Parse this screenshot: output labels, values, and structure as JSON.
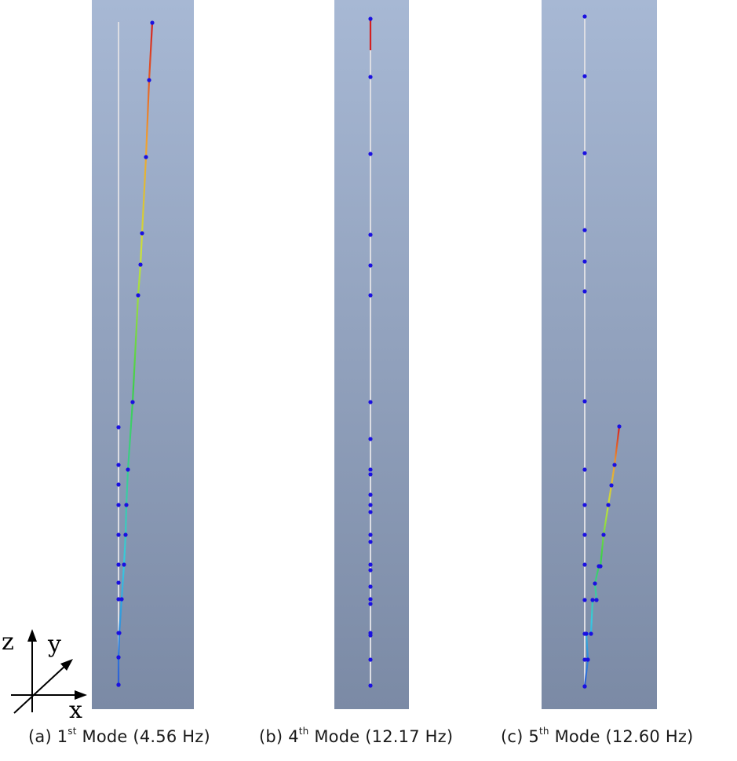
{
  "axes": {
    "z": "z",
    "y": "y",
    "x": "x"
  },
  "panels": [
    {
      "id": "a",
      "caption": {
        "prefix": "(a) 1",
        "sup": "st",
        "suffix": " Mode (4.56 Hz)"
      },
      "colors": {
        "top": "#a7b8d4",
        "bottom": "#7b8aa5"
      },
      "deformed_nodes": [
        [
          194,
          29
        ],
        [
          190,
          102
        ],
        [
          186,
          200
        ],
        [
          181,
          297
        ],
        [
          179,
          337
        ],
        [
          176,
          376
        ],
        [
          169,
          512
        ],
        [
          163,
          598
        ],
        [
          161,
          643
        ],
        [
          160,
          681
        ],
        [
          158,
          719
        ],
        [
          155,
          763
        ],
        [
          152,
          806
        ],
        [
          151,
          837
        ],
        [
          151,
          872
        ]
      ],
      "reference_nodes_x": 151,
      "reference_nodes_y": [
        544,
        592,
        617,
        643,
        681,
        719,
        742,
        763,
        806,
        837,
        872
      ]
    },
    {
      "id": "b",
      "caption": {
        "prefix": "(b) 4",
        "sup": "th",
        "suffix": " Mode (12.17 Hz)"
      },
      "colors": {
        "top": "#a7b8d4",
        "bottom": "#7b8aa5"
      },
      "deformed_nodes_x": 472,
      "deformed_nodes_y": [
        24,
        98,
        196,
        299,
        338,
        376,
        512,
        559,
        598,
        604,
        630,
        643,
        652,
        681,
        690,
        719,
        726,
        747,
        763,
        769,
        806,
        809,
        840,
        873
      ]
    },
    {
      "id": "c",
      "caption": {
        "prefix": "(c) 5",
        "sup": "th",
        "suffix": " Mode (12.60 Hz)"
      },
      "colors": {
        "top": "#a7b8d4",
        "bottom": "#7b8aa5"
      },
      "deformed_nodes": [
        [
          789,
          543
        ],
        [
          783,
          592
        ],
        [
          779,
          618
        ],
        [
          775,
          643
        ],
        [
          769,
          681
        ],
        [
          765,
          721
        ],
        [
          763,
          721
        ],
        [
          758,
          743
        ],
        [
          760,
          764
        ],
        [
          755,
          764
        ],
        [
          753,
          807
        ],
        [
          747,
          807
        ],
        [
          749,
          840
        ],
        [
          745,
          874
        ]
      ],
      "reference_nodes_x": 745,
      "reference_nodes_y": [
        21,
        97,
        195,
        293,
        333,
        371,
        511,
        598,
        643,
        681,
        719,
        764,
        807,
        840,
        874
      ]
    }
  ]
}
